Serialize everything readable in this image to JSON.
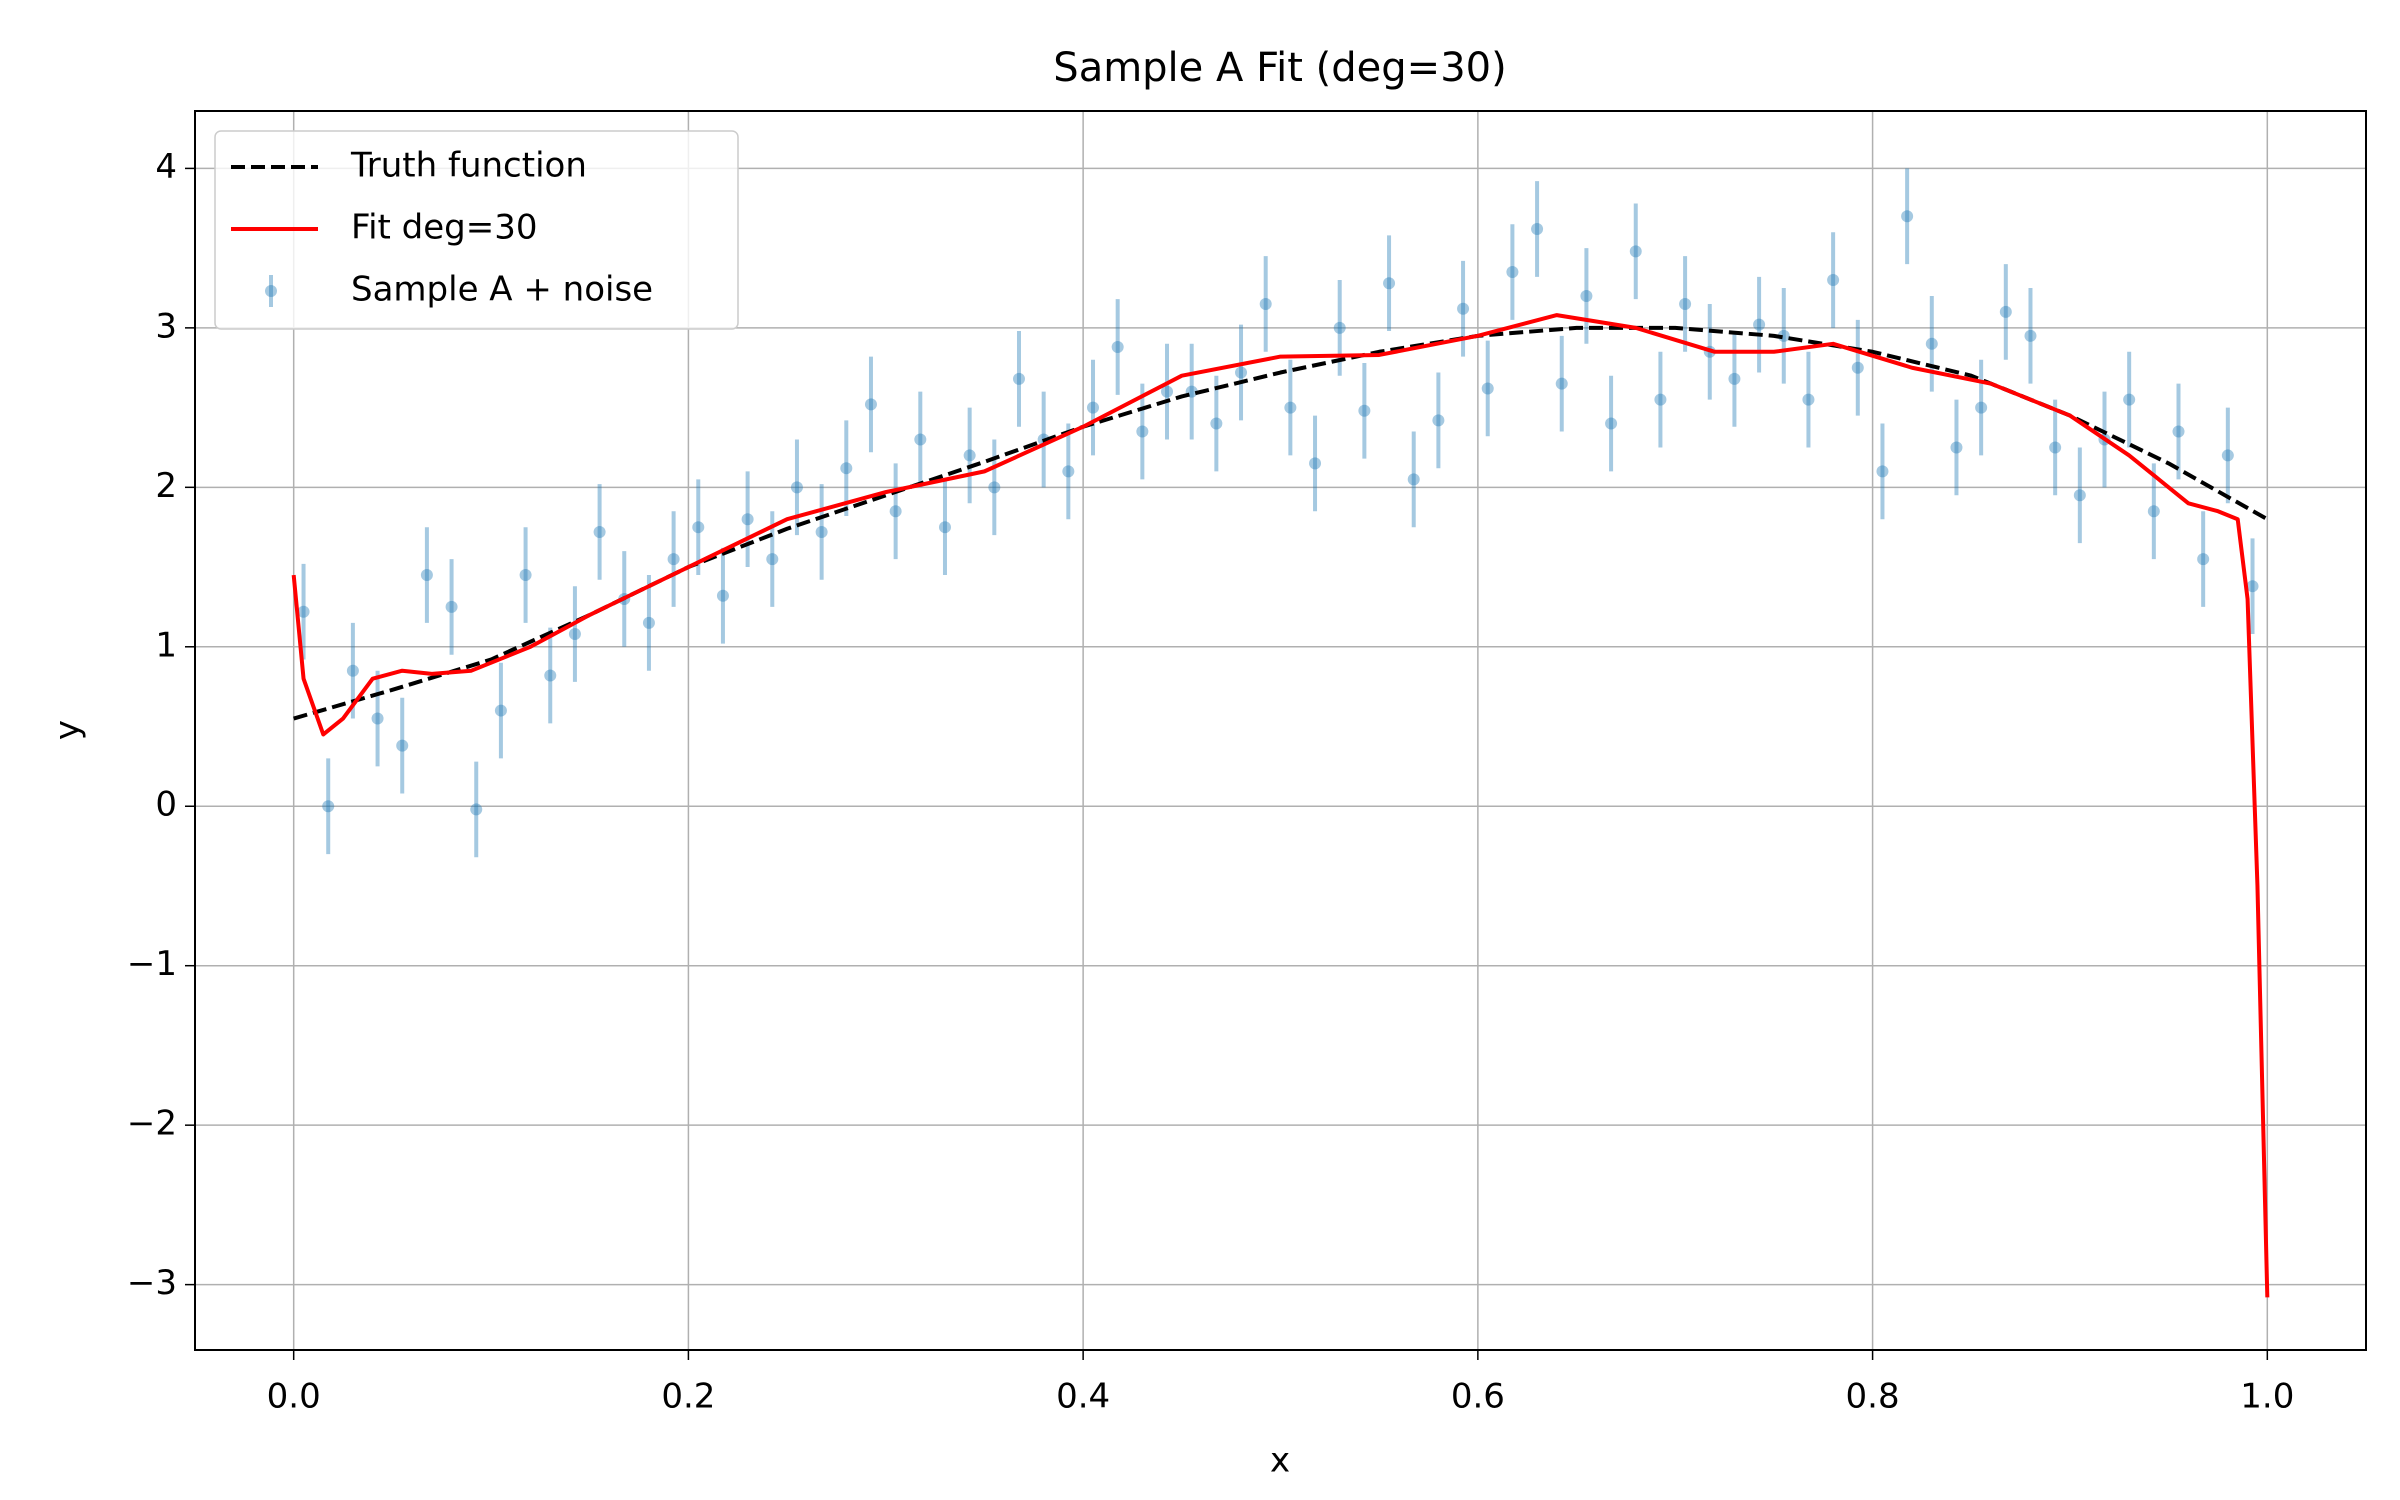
{
  "chart_data": {
    "type": "line",
    "title": "Sample A Fit (deg=30)",
    "x_label": "x",
    "y_label": "y",
    "xlim": [
      -0.05,
      1.05
    ],
    "ylim": [
      -3.41,
      4.36
    ],
    "xticks": [
      {
        "value": 0,
        "label": "0.0"
      },
      0.2,
      0.4,
      0.6,
      0.8,
      {
        "value": 1,
        "label": "1.0"
      }
    ],
    "yticks": [
      {
        "value": -3,
        "label": "−3"
      },
      {
        "value": -2,
        "label": "−2"
      },
      {
        "value": -1,
        "label": "−1"
      },
      0,
      1,
      2,
      3,
      4
    ],
    "grid": true,
    "legend_position": "upper-left",
    "series": [
      {
        "name": "Truth function",
        "kind": "line",
        "style": "dashed",
        "color": "#000000",
        "x": [
          0,
          0.05,
          0.1,
          0.15,
          0.2,
          0.25,
          0.3,
          0.35,
          0.4,
          0.45,
          0.5,
          0.55,
          0.6,
          0.65,
          0.7,
          0.75,
          0.8,
          0.85,
          0.9,
          0.95,
          1.0
        ],
        "values": [
          0.55,
          0.73,
          0.92,
          1.2,
          1.5,
          1.74,
          1.95,
          2.16,
          2.38,
          2.57,
          2.72,
          2.85,
          2.95,
          3.0,
          3.0,
          2.95,
          2.85,
          2.7,
          2.45,
          2.15,
          1.8
        ]
      },
      {
        "name": "Fit deg=30",
        "kind": "line",
        "style": "solid",
        "color": "#ff0000",
        "x": [
          0,
          0.005,
          0.015,
          0.025,
          0.04,
          0.055,
          0.07,
          0.09,
          0.12,
          0.15,
          0.2,
          0.25,
          0.3,
          0.35,
          0.4,
          0.45,
          0.5,
          0.55,
          0.6,
          0.64,
          0.68,
          0.72,
          0.75,
          0.78,
          0.82,
          0.86,
          0.9,
          0.93,
          0.96,
          0.975,
          0.985,
          0.99,
          0.995,
          1.0
        ],
        "values": [
          1.45,
          0.8,
          0.45,
          0.55,
          0.8,
          0.85,
          0.83,
          0.85,
          1.0,
          1.2,
          1.5,
          1.8,
          1.97,
          2.1,
          2.38,
          2.7,
          2.82,
          2.83,
          2.95,
          3.08,
          3.0,
          2.85,
          2.85,
          2.9,
          2.75,
          2.65,
          2.45,
          2.2,
          1.9,
          1.85,
          1.8,
          1.3,
          -0.5,
          -3.08
        ]
      },
      {
        "name": "Sample A + noise",
        "kind": "errorbar",
        "color": "#1f77b4",
        "error": 0.3,
        "x": [
          0.005,
          0.0175,
          0.03,
          0.0425,
          0.055,
          0.0675,
          0.08,
          0.0925,
          0.105,
          0.1175,
          0.13,
          0.1425,
          0.155,
          0.1675,
          0.18,
          0.1925,
          0.205,
          0.2175,
          0.23,
          0.2425,
          0.255,
          0.2675,
          0.28,
          0.2925,
          0.305,
          0.3175,
          0.33,
          0.3425,
          0.355,
          0.3675,
          0.38,
          0.3925,
          0.405,
          0.4175,
          0.43,
          0.4425,
          0.455,
          0.4675,
          0.48,
          0.4925,
          0.505,
          0.5175,
          0.53,
          0.5425,
          0.555,
          0.5675,
          0.58,
          0.5925,
          0.605,
          0.6175,
          0.63,
          0.6425,
          0.655,
          0.6675,
          0.68,
          0.6925,
          0.705,
          0.7175,
          0.73,
          0.7425,
          0.755,
          0.7675,
          0.78,
          0.7925,
          0.805,
          0.8175,
          0.83,
          0.8425,
          0.855,
          0.8675,
          0.88,
          0.8925,
          0.905,
          0.9175,
          0.93,
          0.9425,
          0.955,
          0.9675,
          0.98,
          0.9925
        ],
        "values": [
          1.22,
          0.0,
          0.85,
          0.55,
          0.38,
          1.45,
          1.25,
          -0.02,
          0.6,
          1.45,
          0.82,
          1.08,
          1.72,
          1.3,
          1.15,
          1.55,
          1.75,
          1.32,
          1.8,
          1.55,
          2.0,
          1.72,
          2.12,
          2.52,
          1.85,
          2.3,
          1.75,
          2.2,
          2.0,
          2.68,
          2.3,
          2.1,
          2.5,
          2.88,
          2.35,
          2.6,
          2.6,
          2.4,
          2.72,
          3.15,
          2.5,
          2.15,
          3.0,
          2.48,
          3.28,
          2.05,
          2.42,
          3.12,
          2.62,
          3.35,
          3.62,
          2.65,
          3.2,
          2.4,
          3.48,
          2.55,
          3.15,
          2.85,
          2.68,
          3.02,
          2.95,
          2.55,
          3.3,
          2.75,
          2.1,
          3.7,
          2.9,
          2.25,
          2.5,
          3.1,
          2.95,
          2.25,
          1.95,
          2.3,
          2.55,
          1.85,
          2.35,
          1.55,
          2.2,
          1.38
        ]
      }
    ]
  }
}
